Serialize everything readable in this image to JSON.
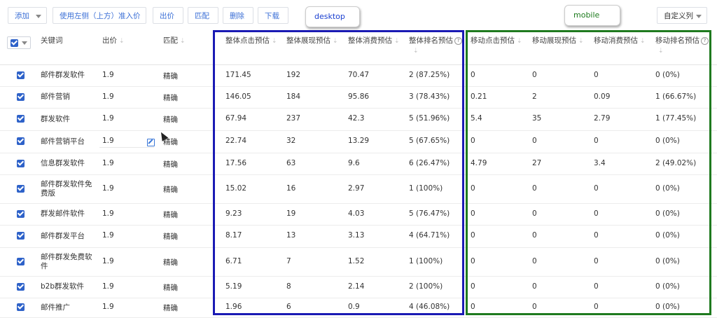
{
  "toolbar": {
    "add": "添加",
    "use_left_price": "使用左侧（上方）准入价",
    "bid": "出价",
    "match": "匹配",
    "delete": "删除",
    "download": "下载",
    "custom_columns": "自定义列"
  },
  "callouts": {
    "desktop": "desktop",
    "mobile": "mobile"
  },
  "columns": {
    "keyword": "关键词",
    "bid": "出价",
    "match": "匹配",
    "total_clicks": "整体点击预估",
    "total_impressions": "整体展现预估",
    "total_cost": "整体消费预估",
    "total_rank": "整体排名预估",
    "mobile_clicks": "移动点击预估",
    "mobile_impressions": "移动展现预估",
    "mobile_cost": "移动消费预估",
    "mobile_rank": "移动排名预估"
  },
  "icons": {
    "sort": "sort-arrow-icon",
    "help": "help-circle-icon",
    "edit": "edit-icon",
    "checkbox": "checkbox-checked-icon"
  },
  "rows": [
    {
      "kw": [
        "邮件群发软件"
      ],
      "bid": "1.9",
      "match": "精确",
      "tc": "171.45",
      "ti": "192",
      "tcost": "70.47",
      "tr": "2 (87.25%)",
      "mc": "0",
      "mi": "0",
      "mcost": "0",
      "mr": "0 (0%)"
    },
    {
      "kw": [
        "邮件营销"
      ],
      "bid": "1.9",
      "match": "精确",
      "tc": "146.05",
      "ti": "184",
      "tcost": "95.86",
      "tr": "3 (78.43%)",
      "mc": "0.21",
      "mi": "2",
      "mcost": "0.09",
      "mr": "1 (66.67%)"
    },
    {
      "kw": [
        "群发软件"
      ],
      "bid": "1.9",
      "match": "精确",
      "tc": "67.94",
      "ti": "237",
      "tcost": "42.3",
      "tr": "5 (51.96%)",
      "mc": "5.4",
      "mi": "35",
      "mcost": "2.79",
      "mr": "1 (77.45%)"
    },
    {
      "kw": [
        "邮件营销平台"
      ],
      "bid": "1.9",
      "match": "精确",
      "tc": "22.74",
      "ti": "32",
      "tcost": "13.29",
      "tr": "5 (67.65%)",
      "mc": "0",
      "mi": "0",
      "mcost": "0",
      "mr": "0 (0%)"
    },
    {
      "kw": [
        "信息群发软件"
      ],
      "bid": "1.9",
      "match": "精确",
      "tc": "17.56",
      "ti": "63",
      "tcost": "9.6",
      "tr": "6 (26.47%)",
      "mc": "4.79",
      "mi": "27",
      "mcost": "3.4",
      "mr": "2 (49.02%)"
    },
    {
      "kw": [
        "邮件群发软件免",
        "费版"
      ],
      "bid": "1.9",
      "match": "精确",
      "tc": "15.02",
      "ti": "16",
      "tcost": "2.97",
      "tr": "1 (100%)",
      "mc": "0",
      "mi": "0",
      "mcost": "0",
      "mr": "0 (0%)"
    },
    {
      "kw": [
        "群发邮件软件"
      ],
      "bid": "1.9",
      "match": "精确",
      "tc": "9.23",
      "ti": "19",
      "tcost": "4.03",
      "tr": "5 (76.47%)",
      "mc": "0",
      "mi": "0",
      "mcost": "0",
      "mr": "0 (0%)"
    },
    {
      "kw": [
        "邮件群发平台"
      ],
      "bid": "1.9",
      "match": "精确",
      "tc": "8.17",
      "ti": "13",
      "tcost": "3.13",
      "tr": "4 (64.71%)",
      "mc": "0",
      "mi": "0",
      "mcost": "0",
      "mr": "0 (0%)"
    },
    {
      "kw": [
        "邮件群发免费软",
        "件"
      ],
      "bid": "1.9",
      "match": "精确",
      "tc": "6.71",
      "ti": "7",
      "tcost": "1.52",
      "tr": "1 (100%)",
      "mc": "0",
      "mi": "0",
      "mcost": "0",
      "mr": "0 (0%)"
    },
    {
      "kw": [
        "b2b群发软件"
      ],
      "bid": "1.9",
      "match": "精确",
      "tc": "5.19",
      "ti": "8",
      "tcost": "2.14",
      "tr": "2 (100%)",
      "mc": "0",
      "mi": "0",
      "mcost": "0",
      "mr": "0 (0%)"
    },
    {
      "kw": [
        "邮件推广"
      ],
      "bid": "1.9",
      "match": "精确",
      "tc": "1.96",
      "ti": "6",
      "tcost": "0.9",
      "tr": "4 (46.08%)",
      "mc": "0",
      "mi": "0",
      "mcost": "0",
      "mr": "0 (0%)"
    }
  ]
}
